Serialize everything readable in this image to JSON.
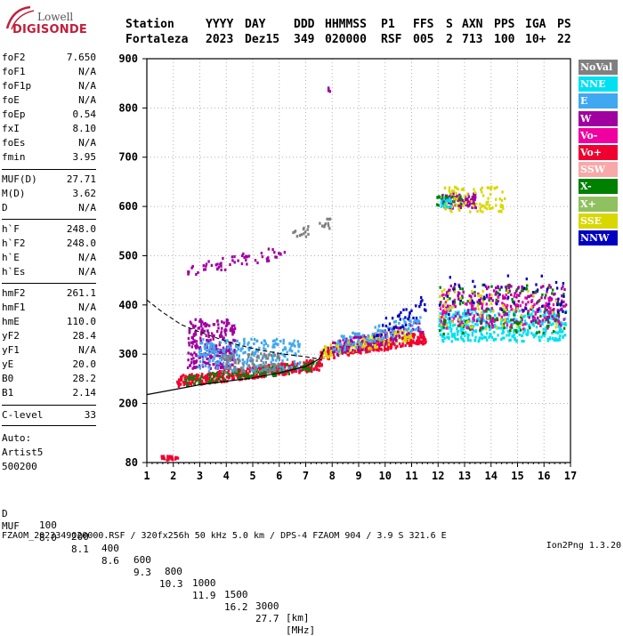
{
  "logo": {
    "line1": "Lowell",
    "line2": "DIGISONDE"
  },
  "header": {
    "labels": [
      "Station",
      "YYYY",
      "DAY",
      "DDD",
      "HHMMSS",
      "P1",
      "FFS",
      "S",
      "AXN",
      "PPS",
      "IGA",
      "PS"
    ],
    "values": [
      "Fortaleza",
      "2023",
      "Dez15",
      "349",
      "020000",
      "RSF",
      "005",
      "2",
      "713",
      "100",
      "10+",
      "22"
    ]
  },
  "params": {
    "group1": [
      {
        "k": "foF2",
        "v": "7.650"
      },
      {
        "k": "foF1",
        "v": "N/A"
      },
      {
        "k": "foF1p",
        "v": "N/A"
      },
      {
        "k": "foE",
        "v": "N/A"
      },
      {
        "k": "foEp",
        "v": "0.54"
      },
      {
        "k": "fxI",
        "v": "8.10"
      },
      {
        "k": "foEs",
        "v": "N/A"
      },
      {
        "k": "fmin",
        "v": "3.95"
      }
    ],
    "group2": [
      {
        "k": "MUF(D)",
        "v": "27.71"
      },
      {
        "k": "M(D)",
        "v": "3.62"
      },
      {
        "k": "D",
        "v": "N/A"
      }
    ],
    "group3": [
      {
        "k": "h`F",
        "v": "248.0"
      },
      {
        "k": "h`F2",
        "v": "248.0"
      },
      {
        "k": "h`E",
        "v": "N/A"
      },
      {
        "k": "h`Es",
        "v": "N/A"
      }
    ],
    "group4": [
      {
        "k": "hmF2",
        "v": "261.1"
      },
      {
        "k": "hmF1",
        "v": "N/A"
      },
      {
        "k": "hmE",
        "v": "110.0"
      },
      {
        "k": "yF2",
        "v": "28.4"
      },
      {
        "k": "yF1",
        "v": "N/A"
      },
      {
        "k": "yE",
        "v": "20.0"
      },
      {
        "k": "B0",
        "v": "28.2"
      },
      {
        "k": "B1",
        "v": "2.14"
      }
    ],
    "group5": [
      {
        "k": "C-level",
        "v": "33"
      }
    ]
  },
  "auto": {
    "line1": "Auto:",
    "line2": "Artist5",
    "line3": "500200"
  },
  "legend": [
    {
      "label": "NoVal",
      "color": "#808080"
    },
    {
      "label": "NNE",
      "color": "#00e0f0"
    },
    {
      "label": "E",
      "color": "#40a8f0"
    },
    {
      "label": "W",
      "color": "#a000a0"
    },
    {
      "label": "Vo-",
      "color": "#f000a0"
    },
    {
      "label": "Vo+",
      "color": "#f00030"
    },
    {
      "label": "SSW",
      "color": "#f8a8a8"
    },
    {
      "label": "X-",
      "color": "#008000"
    },
    {
      "label": "X+",
      "color": "#90c060"
    },
    {
      "label": "SSE",
      "color": "#d8d800"
    },
    {
      "label": "NNW",
      "color": "#0000c0"
    }
  ],
  "footer": {
    "d_label": "D",
    "d_values": [
      "100",
      "200",
      "400",
      "600",
      "800",
      "1000",
      "1500",
      "3000",
      "[km]"
    ],
    "muf_label": "MUF",
    "muf_values": [
      "8.0",
      "8.1",
      "8.6",
      "9.3",
      "10.3",
      "11.9",
      "16.2",
      "27.7",
      "[MHz]"
    ],
    "file_line": "FZAOM_2023349020000.RSF / 320fx256h 50 kHz 5.0 km / DPS-4 FZAOM 904 / 3.9 S 321.6 E",
    "version": "Ion2Png 1.3.20"
  },
  "chart_data": {
    "type": "scatter",
    "xlabel": "",
    "ylabel": "",
    "xlim": [
      1,
      17
    ],
    "ylim": [
      80,
      900
    ],
    "x_ticks": [
      1,
      2,
      3,
      4,
      5,
      6,
      7,
      8,
      9,
      10,
      11,
      12,
      13,
      14,
      15,
      16,
      17
    ],
    "y_ticks": [
      80,
      200,
      300,
      400,
      500,
      600,
      700,
      800,
      900
    ],
    "grid": true,
    "legend_position": "right",
    "clusters": [
      {
        "color": "#f00030",
        "x": [
          2.1,
          7.6
        ],
        "y": [
          232,
          290
        ],
        "count": 420,
        "trend": "rising"
      },
      {
        "color": "#008000",
        "x": [
          2.4,
          7.4
        ],
        "y": [
          235,
          285
        ],
        "count": 120,
        "trend": "rising"
      },
      {
        "color": "#a000a0",
        "x": [
          2.5,
          4.3
        ],
        "y": [
          270,
          370
        ],
        "count": 260,
        "trend": "flat"
      },
      {
        "color": "#40a8f0",
        "x": [
          2.9,
          6.8
        ],
        "y": [
          265,
          330
        ],
        "count": 260,
        "trend": "flat"
      },
      {
        "color": "#808080",
        "x": [
          3.8,
          6.0
        ],
        "y": [
          262,
          300
        ],
        "count": 80,
        "trend": "flat"
      },
      {
        "color": "#f00030",
        "x": [
          7.5,
          11.5
        ],
        "y": [
          285,
          345
        ],
        "count": 260,
        "trend": "rising"
      },
      {
        "color": "#d8d800",
        "x": [
          7.6,
          11.0
        ],
        "y": [
          290,
          355
        ],
        "count": 160,
        "trend": "rising"
      },
      {
        "color": "#a000a0",
        "x": [
          7.8,
          11.4
        ],
        "y": [
          290,
          370
        ],
        "count": 120,
        "trend": "rising"
      },
      {
        "color": "#40a8f0",
        "x": [
          8.0,
          11.3
        ],
        "y": [
          300,
          380
        ],
        "count": 100,
        "trend": "rising"
      },
      {
        "color": "#0000c0",
        "x": [
          9.5,
          11.5
        ],
        "y": [
          320,
          420
        ],
        "count": 40,
        "trend": "rising"
      },
      {
        "color": "#00e0f0",
        "x": [
          12.0,
          16.8
        ],
        "y": [
          325,
          390
        ],
        "count": 420,
        "trend": "flat"
      },
      {
        "color": "#a000a0",
        "x": [
          12.1,
          16.8
        ],
        "y": [
          360,
          440
        ],
        "count": 200,
        "trend": "flat"
      },
      {
        "color": "#f000a0",
        "x": [
          12.0,
          16.8
        ],
        "y": [
          350,
          420
        ],
        "count": 140,
        "trend": "flat"
      },
      {
        "color": "#008000",
        "x": [
          12.0,
          16.8
        ],
        "y": [
          340,
          440
        ],
        "count": 100,
        "trend": "flat"
      },
      {
        "color": "#0000c0",
        "x": [
          12.0,
          16.8
        ],
        "y": [
          380,
          460
        ],
        "count": 50,
        "trend": "flat"
      },
      {
        "color": "#d8d800",
        "x": [
          12.0,
          16.5
        ],
        "y": [
          350,
          430
        ],
        "count": 60,
        "trend": "flat"
      },
      {
        "color": "#a000a0",
        "x": [
          2.5,
          6.2
        ],
        "y": [
          455,
          520
        ],
        "count": 60,
        "trend": "rising"
      },
      {
        "color": "#808080",
        "x": [
          6.3,
          8.0
        ],
        "y": [
          520,
          580
        ],
        "count": 25,
        "trend": "rising"
      },
      {
        "color": "#a000a0",
        "x": [
          12.1,
          13.4
        ],
        "y": [
          595,
          625
        ],
        "count": 90,
        "trend": "flat"
      },
      {
        "color": "#d8d800",
        "x": [
          12.2,
          14.5
        ],
        "y": [
          588,
          640
        ],
        "count": 90,
        "trend": "flat"
      },
      {
        "color": "#008000",
        "x": [
          11.8,
          13.0
        ],
        "y": [
          600,
          620
        ],
        "count": 20,
        "trend": "flat"
      },
      {
        "color": "#00e0f0",
        "x": [
          11.8,
          12.5
        ],
        "y": [
          598,
          615
        ],
        "count": 15,
        "trend": "flat"
      },
      {
        "color": "#f00030",
        "x": [
          1.5,
          2.2
        ],
        "y": [
          84,
          92
        ],
        "count": 25,
        "trend": "flat"
      },
      {
        "color": "#a000a0",
        "x": [
          7.8,
          7.95
        ],
        "y": [
          830,
          840
        ],
        "count": 4,
        "trend": "flat"
      }
    ],
    "curve_lower": {
      "x": [
        1.0,
        2.0,
        3.0,
        4.0,
        5.0,
        6.0,
        7.0,
        7.5,
        7.7
      ],
      "y": [
        218,
        228,
        238,
        245,
        252,
        262,
        275,
        290,
        310
      ]
    },
    "curve_upper": {
      "x": [
        1.0,
        1.6,
        2.3,
        3.0,
        3.8,
        4.5,
        5.3,
        6.2,
        7.0,
        7.5,
        7.6
      ],
      "y": [
        410,
        385,
        360,
        345,
        330,
        318,
        308,
        300,
        295,
        290,
        288
      ]
    }
  }
}
